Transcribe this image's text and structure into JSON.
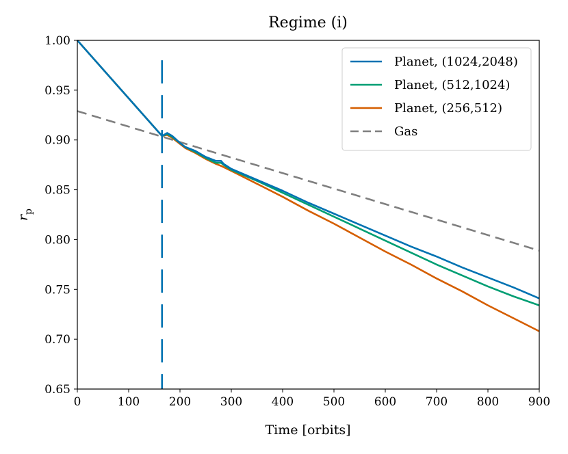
{
  "chart_data": {
    "type": "line",
    "title": "Regime (i)",
    "xlabel": "Time [orbits]",
    "ylabel": "r",
    "ylabel_subscript": "p",
    "xlim": [
      0,
      900
    ],
    "ylim": [
      0.65,
      1.0
    ],
    "xticks": [
      0,
      100,
      200,
      300,
      400,
      500,
      600,
      700,
      800,
      900
    ],
    "xtick_labels": [
      "0",
      "100",
      "200",
      "300",
      "400",
      "500",
      "600",
      "700",
      "800",
      "900"
    ],
    "yticks": [
      0.65,
      0.7,
      0.75,
      0.8,
      0.85,
      0.9,
      0.95,
      1.0
    ],
    "ytick_labels": [
      "0.65",
      "0.70",
      "0.75",
      "0.80",
      "0.85",
      "0.90",
      "0.95",
      "1.00"
    ],
    "grid": false,
    "legend_position": "top-right",
    "vertical_marker": {
      "x": 165,
      "color": "#0072b2",
      "style": "dashed"
    },
    "series": [
      {
        "name": "Planet, (1024,2048)",
        "color": "#0072b2",
        "style": "solid",
        "x": [
          0,
          165,
          175,
          185,
          200,
          210,
          230,
          250,
          270,
          280,
          285,
          300,
          350,
          400,
          450,
          500,
          550,
          600,
          650,
          700,
          750,
          800,
          850,
          900
        ],
        "y": [
          1.0,
          0.904,
          0.907,
          0.904,
          0.897,
          0.893,
          0.889,
          0.883,
          0.879,
          0.879,
          0.876,
          0.871,
          0.86,
          0.849,
          0.837,
          0.826,
          0.815,
          0.804,
          0.793,
          0.783,
          0.772,
          0.762,
          0.752,
          0.741
        ]
      },
      {
        "name": "Planet, (512,1024)",
        "color": "#009e73",
        "style": "solid",
        "x": [
          0,
          165,
          175,
          185,
          200,
          210,
          230,
          250,
          270,
          280,
          285,
          300,
          350,
          400,
          450,
          500,
          550,
          600,
          650,
          700,
          750,
          800,
          850,
          900
        ],
        "y": [
          1.0,
          0.904,
          0.906,
          0.903,
          0.897,
          0.893,
          0.888,
          0.882,
          0.877,
          0.877,
          0.875,
          0.87,
          0.859,
          0.847,
          0.835,
          0.823,
          0.811,
          0.799,
          0.787,
          0.775,
          0.764,
          0.753,
          0.743,
          0.734
        ]
      },
      {
        "name": "Planet, (256,512)",
        "color": "#d55e00",
        "style": "solid",
        "x": [
          0,
          165,
          175,
          185,
          200,
          210,
          230,
          250,
          270,
          280,
          300,
          350,
          400,
          450,
          500,
          550,
          600,
          650,
          700,
          750,
          800,
          850,
          900
        ],
        "y": [
          1.0,
          0.904,
          0.905,
          0.902,
          0.896,
          0.892,
          0.887,
          0.881,
          0.876,
          0.874,
          0.869,
          0.856,
          0.843,
          0.829,
          0.816,
          0.802,
          0.788,
          0.775,
          0.761,
          0.748,
          0.734,
          0.721,
          0.708
        ]
      },
      {
        "name": "Gas",
        "color": "#7f7f7f",
        "style": "dashed",
        "x": [
          0,
          900
        ],
        "y": [
          0.929,
          0.789
        ]
      }
    ]
  }
}
